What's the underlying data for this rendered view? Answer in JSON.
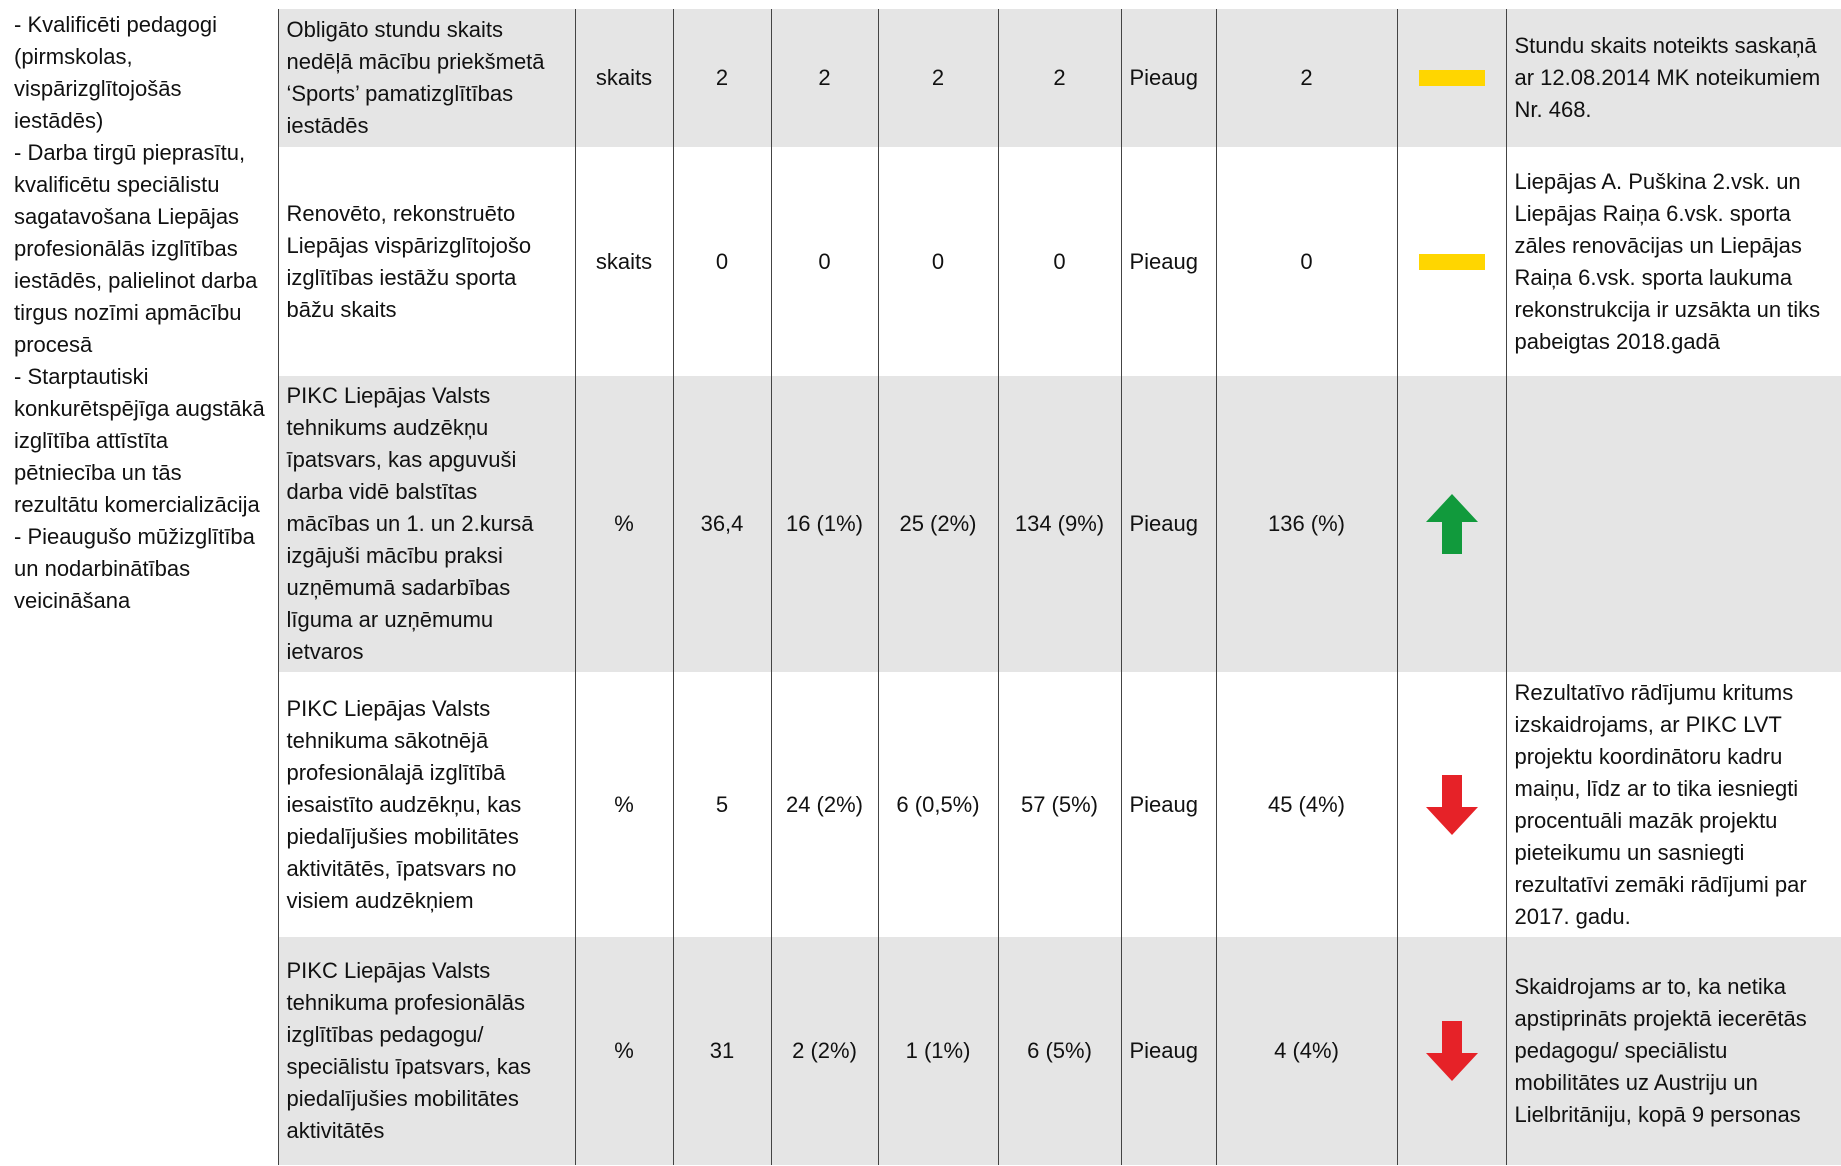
{
  "sidebar": {
    "items": [
      "- Kvalificēti pedagogi (pirmskolas, vispārizglītojošās iestādēs)",
      "- Darba tirgū pieprasītu, kvalificētu speciālistu sagatavošana Liepājas profesionālās izglītības iestādēs, palielinot darba tirgus nozīmi apmācību procesā",
      "- Starptautiski konkurētspējīga augstākā izglītība attīstīta pētniecība un tās rezultātu komercializācija",
      "- Pieaugušo mūžizglītība un nodarbinātības veicināšana"
    ]
  },
  "table": {
    "rows": [
      [
        "Obligāto stundu skaits nedēļā mācību priekšmetā ‘Sports’ pamatizglītības iestādēs",
        "skaits",
        "2",
        "2",
        "2",
        "2",
        "Pieaug",
        "2",
        "Stundu skaits noteikts saskaņā ar 12.08.2014 MK noteikumiem Nr. 468."
      ],
      [
        "Renovēto, rekonstruēto Liepājas vispārizglītojošo izglītības iestāžu sporta bāžu skaits",
        "skaits",
        "0",
        "0",
        "0",
        "0",
        "Pieaug",
        "0",
        "Liepājas A. Puškina 2.vsk. un Liepājas Raiņa 6.vsk. sporta zāles renovācijas un Liepājas Raiņa 6.vsk. sporta laukuma rekonstrukcija ir uzsākta un tiks pabeigtas 2018.gadā"
      ],
      [
        "PIKC Liepājas Valsts tehnikums audzēkņu īpatsvars, kas apguvuši darba vidē balstītas mācības un 1. un 2.kursā izgājuši mācību praksi uzņēmumā sadarbības līguma ar uzņēmumu ietvaros",
        "%",
        "36,4",
        "16 (1%)",
        "25 (2%)",
        "134 (9%)",
        "Pieaug",
        "136 (%)",
        ""
      ],
      [
        "PIKC Liepājas Valsts tehnikuma sākotnējā profesionālajā izglītībā iesaistīto audzēkņu, kas piedalījušies mobilitātes aktivitātēs, īpatsvars no visiem audzēkņiem",
        "%",
        "5",
        "24 (2%)",
        "6 (0,5%)",
        "57 (5%)",
        "Pieaug",
        "45 (4%)",
        " Rezultatīvo rādījumu kri­tums izskaidrojams, ar PIKC LVT projektu koordinātoru kadru maiņu, līdz ar to tika iesniegti procentuāli ma­zāk projektu pieteikumu un sasniegti rezultatīvi zemāki rādījumi par 2017. gadu."
      ],
      [
        "PIKC Liepājas Valsts tehnikuma profesionālās izglītības pedagogu/ speciālistu īpatsvars, kas piedalījušies mobilitātes aktivitātēs",
        "%",
        "31",
        "2 (2%)",
        "1 (1%)",
        "6 (5%)",
        "Pieaug",
        "4 (4%)",
        "Skaidrojams ar to, ka netika apstiprināts projektā iecerētās pedagogu/ speciālistu mobilitātes uz Austriju un Lielbritāniju, kopā 9 personas"
      ]
    ]
  }
}
